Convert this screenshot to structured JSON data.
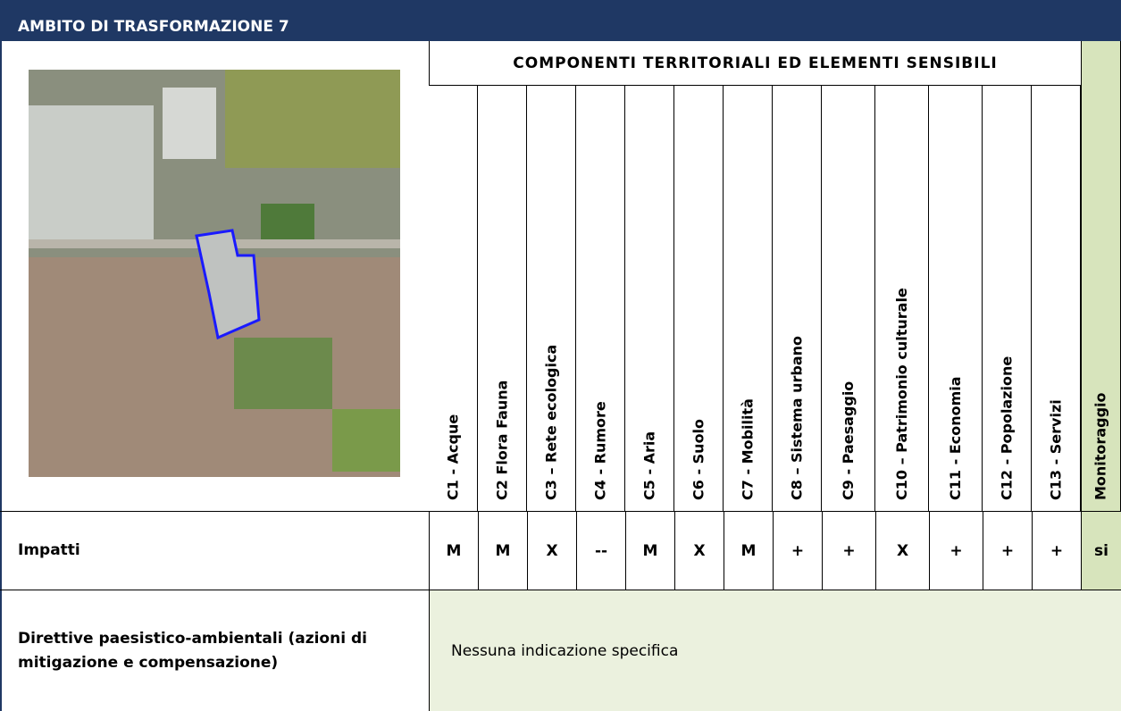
{
  "header": {
    "title": "AMBITO DI TRASFORMAZIONE 7"
  },
  "table": {
    "group_header": "COMPONENTI TERRITORIALI ED ELEMENTI SENSIBILI",
    "columns": [
      "C1 - Acque",
      "C2 Flora Fauna",
      "C3 – Rete ecologica",
      "C4 - Rumore",
      "C5 - Aria",
      "C6 - Suolo",
      "C7 - Mobilità",
      "C8 – Sistema urbano",
      "C9 - Paesaggio",
      "C10 – Patrimonio culturale",
      "C11 - Economia",
      "C12 - Popolazione",
      "C13 - Servizi",
      "Monitoraggio"
    ],
    "rows": [
      {
        "label": "Impatti",
        "values": [
          "M",
          "M",
          "X",
          "--",
          "M",
          "X",
          "M",
          "+",
          "+",
          "X",
          "+",
          "+",
          "+",
          "si"
        ]
      }
    ],
    "directives": {
      "label": "Direttive paesistico-ambientali (azioni di mitigazione e compensazione)",
      "text": "Nessuna indicazione specifica"
    }
  }
}
